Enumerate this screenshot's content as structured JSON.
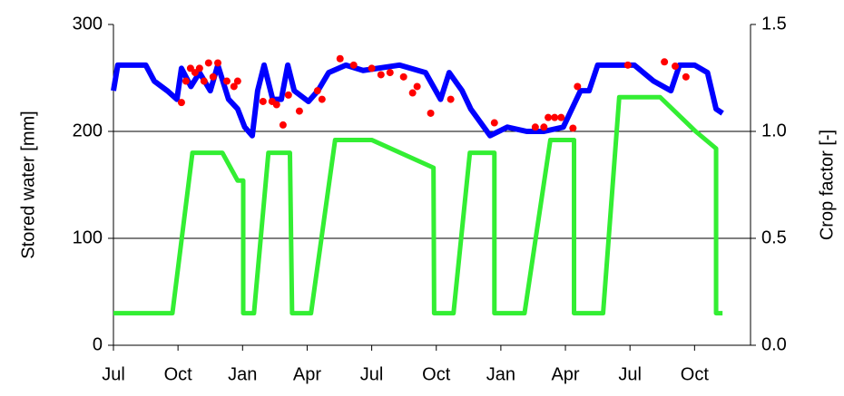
{
  "chart_data": {
    "type": "line",
    "ylabel": "Stored water [mm]",
    "y2label": "Crop factor [-]",
    "xlim": [
      0,
      29.6
    ],
    "xticks": [
      {
        "value": 0,
        "label": "Jul"
      },
      {
        "value": 3,
        "label": "Oct"
      },
      {
        "value": 6,
        "label": "Jan"
      },
      {
        "value": 9,
        "label": "Apr"
      },
      {
        "value": 12,
        "label": "Jul"
      },
      {
        "value": 15,
        "label": "Oct"
      },
      {
        "value": 18,
        "label": "Jan"
      },
      {
        "value": 21,
        "label": "Apr"
      },
      {
        "value": 24,
        "label": "Jul"
      },
      {
        "value": 27,
        "label": "Oct"
      }
    ],
    "ylim": [
      0,
      300
    ],
    "yticks": [
      0,
      100,
      200,
      300
    ],
    "y2lim": [
      0,
      1.5
    ],
    "y2ticks": [
      {
        "value": 0,
        "label": "0.0"
      },
      {
        "value": 0.5,
        "label": "0.5"
      },
      {
        "value": 1,
        "label": "1.0"
      },
      {
        "value": 1.5,
        "label": "1.5"
      }
    ],
    "grid": true,
    "series": [
      {
        "type": "line",
        "color": "#0000ff",
        "axis": "y",
        "x": [
          0,
          0.2,
          1.5,
          1.9,
          2.5,
          2.95,
          3.16,
          3.6,
          4.0,
          4.5,
          4.85,
          5.35,
          5.77,
          6.1,
          6.45,
          6.7,
          7.0,
          7.4,
          7.8,
          8.1,
          8.4,
          9.06,
          9.5,
          10.0,
          10.8,
          11.6,
          13.3,
          14.5,
          15.2,
          15.6,
          16.2,
          16.6,
          17.5,
          18.3,
          19.2,
          20.0,
          20.9,
          21.7,
          22.1,
          22.5,
          24.2,
          25.1,
          25.9,
          26.3,
          27.0,
          27.6,
          28.0,
          28.3
        ],
        "values": [
          238,
          262,
          262,
          247,
          238,
          230,
          259,
          242,
          255,
          238,
          262,
          230,
          221,
          204,
          196,
          238,
          262,
          230,
          230,
          262,
          238,
          228,
          238,
          255,
          262,
          257,
          262,
          255,
          230,
          255,
          238,
          221,
          196,
          204,
          200,
          200,
          204,
          238,
          238,
          262,
          262,
          247,
          238,
          262,
          262,
          255,
          221,
          217
        ]
      },
      {
        "type": "scatter",
        "color": "#ff0000",
        "axis": "y",
        "x": [
          3.16,
          3.37,
          3.58,
          3.79,
          4.0,
          4.21,
          4.42,
          4.63,
          4.85,
          5.27,
          5.6,
          5.77,
          6.95,
          7.37,
          7.58,
          7.88,
          8.13,
          8.64,
          9.48,
          9.69,
          10.53,
          11.16,
          12.0,
          12.43,
          12.85,
          13.48,
          13.9,
          14.11,
          14.74,
          15.67,
          17.7,
          19.6,
          20.0,
          20.2,
          20.5,
          20.8,
          21.35,
          21.56,
          23.9,
          25.6,
          26.1,
          26.6
        ],
        "values": [
          227,
          247,
          259,
          255,
          259,
          247,
          264,
          251,
          264,
          247,
          242,
          247,
          228,
          228,
          225,
          206,
          234,
          219,
          238,
          230,
          268,
          262,
          259,
          253,
          255,
          251,
          236,
          242,
          217,
          230,
          208,
          204,
          204,
          213,
          213,
          213,
          203,
          242,
          262,
          265,
          261,
          251
        ]
      },
      {
        "type": "line",
        "color": "#33ee33",
        "axis": "y2",
        "x": [
          0,
          2.74,
          3.67,
          5.06,
          5.77,
          6.03,
          6.03,
          6.53,
          7.2,
          8.2,
          8.3,
          9.18,
          10.3,
          12.0,
          14.87,
          14.9,
          15.8,
          16.56,
          17.7,
          17.7,
          19.1,
          20.3,
          21.4,
          21.4,
          22.75,
          23.5,
          25.4,
          27.05,
          28.0,
          28.0,
          28.3
        ],
        "values": [
          0.15,
          0.15,
          0.9,
          0.9,
          0.77,
          0.77,
          0.15,
          0.15,
          0.9,
          0.9,
          0.15,
          0.15,
          0.96,
          0.96,
          0.83,
          0.15,
          0.15,
          0.9,
          0.9,
          0.15,
          0.15,
          0.96,
          0.96,
          0.15,
          0.15,
          1.16,
          1.16,
          1.0,
          0.92,
          0.15,
          0.15
        ]
      }
    ]
  }
}
